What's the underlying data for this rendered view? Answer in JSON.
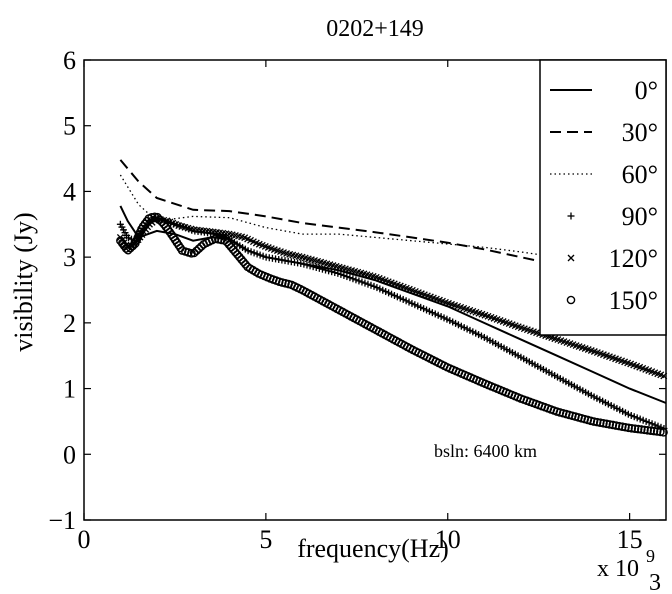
{
  "chart_data": {
    "type": "line",
    "title": "0202+149",
    "xlabel": "frequency(Hz)",
    "ylabel": "visibility (Jy)",
    "x_multiplier_label": "x 10",
    "x_multiplier_exponent": "9",
    "page_number": "3",
    "annotation": "bsln: 6400 km",
    "xlim": [
      0,
      16
    ],
    "ylim": [
      -1,
      6
    ],
    "xticks": [
      0,
      5,
      10,
      15
    ],
    "xtick_labels": [
      "0",
      "5",
      "10",
      "15"
    ],
    "yticks": [
      -1,
      0,
      1,
      2,
      3,
      4,
      5,
      6
    ],
    "ytick_labels": [
      "−1",
      "0",
      "1",
      "2",
      "3",
      "4",
      "5",
      "6"
    ],
    "grid": false,
    "legend_position": "top-right",
    "series": [
      {
        "name": "0°",
        "style": "solid",
        "x": [
          1.0,
          1.2,
          1.5,
          2.0,
          2.5,
          3.0,
          3.5,
          4.0,
          4.5,
          5.0,
          5.5,
          6.0,
          7.0,
          8.0,
          9.0,
          10.0,
          11.0,
          12.0,
          13.0,
          14.0,
          15.0,
          16.0
        ],
        "y": [
          3.78,
          3.55,
          3.3,
          3.4,
          3.35,
          3.25,
          3.3,
          3.28,
          3.1,
          3.0,
          2.95,
          2.9,
          2.8,
          2.65,
          2.45,
          2.25,
          2.0,
          1.75,
          1.5,
          1.25,
          1.0,
          0.78
        ]
      },
      {
        "name": "30°",
        "style": "dashed",
        "x": [
          1.0,
          1.5,
          2.0,
          3.0,
          4.0,
          5.0,
          6.0,
          7.0,
          8.0,
          9.0,
          10.0,
          11.0,
          12.0,
          13.0,
          14.0,
          15.0,
          16.0
        ],
        "y": [
          4.48,
          4.15,
          3.9,
          3.72,
          3.7,
          3.62,
          3.52,
          3.45,
          3.38,
          3.3,
          3.22,
          3.12,
          3.0,
          2.88,
          2.75,
          2.63,
          2.52
        ]
      },
      {
        "name": "60°",
        "style": "dotted",
        "x": [
          1.0,
          1.5,
          2.0,
          3.0,
          4.0,
          5.0,
          6.0,
          7.0,
          8.0,
          9.0,
          10.0,
          11.0,
          12.0,
          13.0,
          14.0,
          15.0,
          16.0
        ],
        "y": [
          4.25,
          3.8,
          3.55,
          3.62,
          3.6,
          3.45,
          3.35,
          3.35,
          3.3,
          3.25,
          3.2,
          3.15,
          3.08,
          3.0,
          2.95,
          2.88,
          2.8
        ]
      },
      {
        "name": "90°",
        "style": "plus",
        "x": [
          1.0,
          1.2,
          1.4,
          1.6,
          1.8,
          2.0,
          2.2,
          2.5,
          2.8,
          3.0,
          3.3,
          3.6,
          3.9,
          4.2,
          4.5,
          5.0,
          5.5,
          6.0,
          7.0,
          8.0,
          9.0,
          10.0,
          11.0,
          12.0,
          13.0,
          14.0,
          15.0,
          16.0
        ],
        "y": [
          3.5,
          3.3,
          3.25,
          3.4,
          3.55,
          3.6,
          3.55,
          3.5,
          3.45,
          3.4,
          3.38,
          3.35,
          3.3,
          3.2,
          3.1,
          3.0,
          2.95,
          2.9,
          2.75,
          2.55,
          2.3,
          2.05,
          1.78,
          1.48,
          1.18,
          0.88,
          0.6,
          0.38
        ]
      },
      {
        "name": "120°",
        "style": "x",
        "x": [
          1.0,
          1.2,
          1.4,
          1.6,
          1.8,
          2.0,
          2.3,
          2.6,
          3.0,
          3.3,
          3.6,
          4.0,
          4.4,
          4.8,
          5.2,
          5.6,
          6.0,
          7.0,
          8.0,
          9.0,
          10.0,
          11.0,
          12.0,
          13.0,
          14.0,
          15.0,
          16.0
        ],
        "y": [
          3.3,
          3.15,
          3.2,
          3.35,
          3.5,
          3.58,
          3.55,
          3.48,
          3.42,
          3.4,
          3.38,
          3.35,
          3.3,
          3.2,
          3.12,
          3.05,
          3.0,
          2.85,
          2.7,
          2.5,
          2.3,
          2.12,
          1.93,
          1.75,
          1.57,
          1.38,
          1.18
        ]
      },
      {
        "name": "150°",
        "style": "circle",
        "x": [
          1.0,
          1.2,
          1.4,
          1.6,
          1.8,
          2.0,
          2.2,
          2.4,
          2.7,
          3.0,
          3.3,
          3.6,
          3.9,
          4.2,
          4.5,
          4.8,
          5.1,
          5.4,
          5.7,
          6.0,
          6.5,
          7.0,
          8.0,
          9.0,
          10.0,
          11.0,
          12.0,
          13.0,
          14.0,
          15.0,
          16.0
        ],
        "y": [
          3.25,
          3.1,
          3.2,
          3.45,
          3.6,
          3.62,
          3.5,
          3.35,
          3.1,
          3.05,
          3.2,
          3.28,
          3.25,
          3.05,
          2.85,
          2.75,
          2.68,
          2.62,
          2.58,
          2.5,
          2.35,
          2.2,
          1.9,
          1.6,
          1.32,
          1.08,
          0.85,
          0.65,
          0.5,
          0.4,
          0.33
        ]
      }
    ]
  }
}
